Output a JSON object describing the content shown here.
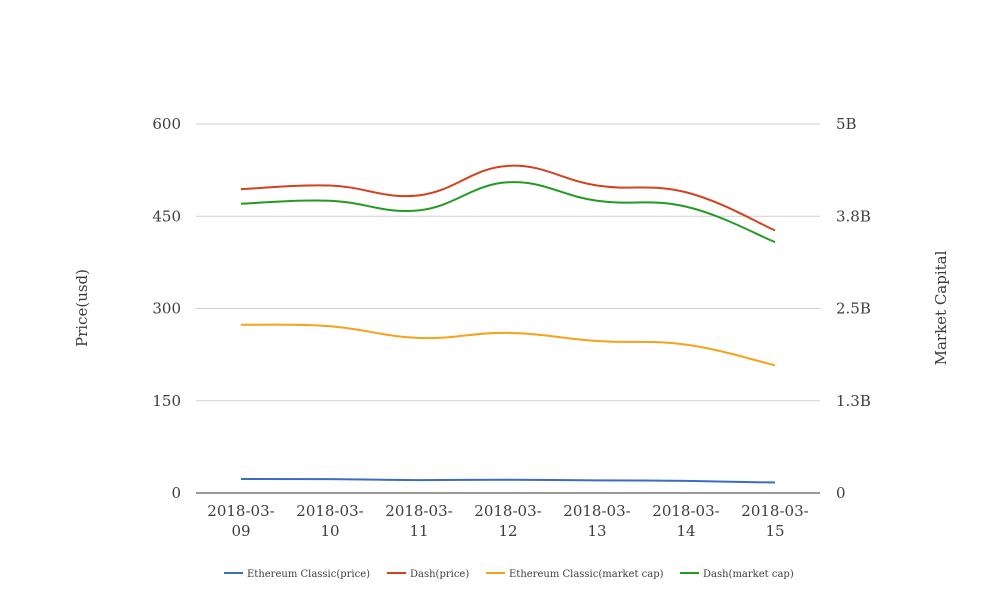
{
  "chart_data": {
    "type": "line",
    "title": "",
    "categories": [
      [
        "2018-03-",
        "09"
      ],
      [
        "2018-03-",
        "10"
      ],
      [
        "2018-03-",
        "11"
      ],
      [
        "2018-03-",
        "12"
      ],
      [
        "2018-03-",
        "13"
      ],
      [
        "2018-03-",
        "14"
      ],
      [
        "2018-03-",
        "15"
      ]
    ],
    "y_left": {
      "label": "Price(usd)",
      "ylim": [
        0,
        600
      ],
      "ticks": [
        0,
        150,
        300,
        450,
        600
      ],
      "tick_labels": [
        "0",
        "150",
        "300",
        "450",
        "600"
      ]
    },
    "y_right": {
      "label": "Market Capital",
      "ylim": [
        0,
        5000000000
      ],
      "ticks": [
        0,
        1250000000,
        2500000000,
        3750000000,
        5000000000
      ],
      "tick_labels": [
        "0",
        "1.3B",
        "2.5B",
        "3.8B",
        "5B"
      ]
    },
    "grid": true,
    "legend_position": "bottom",
    "series": [
      {
        "name": "Ethereum Classic(price)",
        "axis": "left",
        "color": "#3b6cc4",
        "values": [
          22.8,
          22.6,
          21.0,
          21.6,
          20.6,
          19.8,
          17.0
        ]
      },
      {
        "name": "Dash(price)",
        "axis": "left",
        "color": "#d2421c",
        "values": [
          494,
          500,
          484,
          532,
          500,
          489,
          427
        ]
      },
      {
        "name": "Ethereum Classic(market cap)",
        "axis": "right",
        "color": "#f5a31a",
        "values": [
          2280000000,
          2260000000,
          2100000000,
          2170000000,
          2060000000,
          2010000000,
          1730000000
        ]
      },
      {
        "name": "Dash(market cap)",
        "axis": "right",
        "color": "#239a22",
        "values": [
          3920000000,
          3960000000,
          3830000000,
          4210000000,
          3960000000,
          3880000000,
          3400000000
        ]
      }
    ]
  }
}
